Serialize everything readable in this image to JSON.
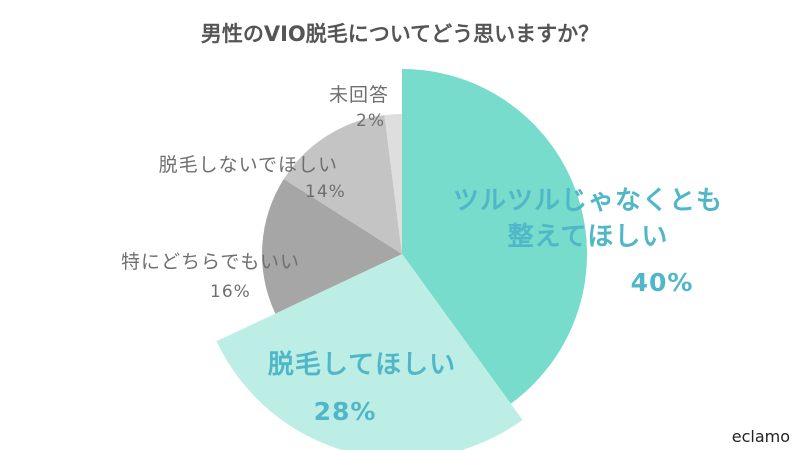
{
  "chart_data": {
    "type": "pie",
    "title": "男性のVIO脱毛についてどう思いますか？",
    "unit": "%",
    "slices": [
      {
        "label": "ツルツルじゃなくとも整えてほしい",
        "label_lines": [
          "ツルツルじゃなくとも",
          "整えてほしい"
        ],
        "value": 40,
        "pct_text": "40%",
        "color": "#77dccb"
      },
      {
        "label": "脱毛してほしい",
        "label_lines": [
          "脱毛してほしい"
        ],
        "value": 28,
        "pct_text": "28%",
        "color": "#bdeee6"
      },
      {
        "label": "特にどちらでもいい",
        "label_lines": [
          "特にどちらでもいい"
        ],
        "value": 16,
        "pct_text": "16%",
        "color": "#a6a6a6"
      },
      {
        "label": "脱毛しないでほしい",
        "label_lines": [
          "脱毛しないでほしい"
        ],
        "value": 14,
        "pct_text": "14%",
        "color": "#c4c4c4"
      },
      {
        "label": "未回答",
        "label_lines": [
          "未回答"
        ],
        "value": 2,
        "pct_text": "2%",
        "color": "#dedede"
      }
    ]
  },
  "brand": "eclamo"
}
